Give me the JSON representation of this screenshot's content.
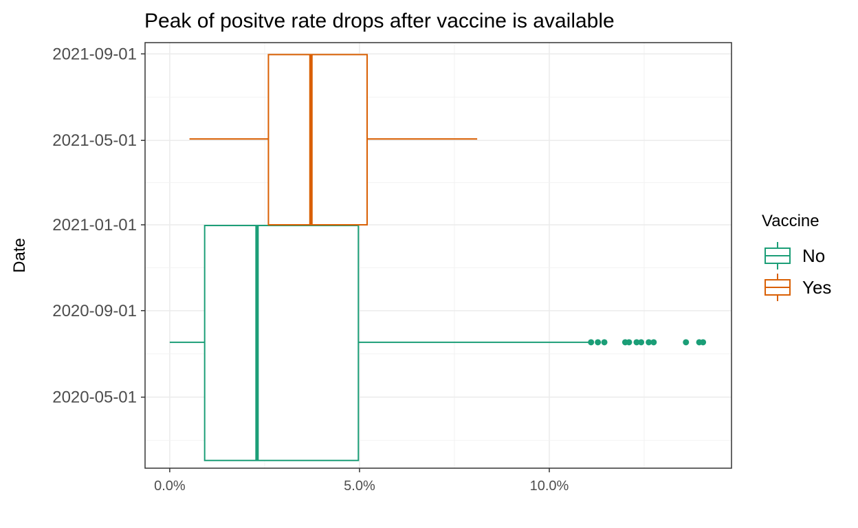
{
  "chart_data": {
    "type": "boxplot",
    "title": "Peak of positve rate drops after vaccine is available",
    "xlabel": "",
    "ylabel": "Date",
    "x_axis": {
      "format": "percent",
      "ticks": [
        0.0,
        5.0,
        10.0
      ],
      "tick_labels": [
        "0.0%",
        "5.0%",
        "10.0%"
      ],
      "range": [
        -0.65,
        14.8
      ]
    },
    "y_axis": {
      "type": "date",
      "ticks": [
        "2020-05-01",
        "2020-09-01",
        "2021-01-01",
        "2021-05-01",
        "2021-09-01"
      ],
      "range": [
        "2020-01-21",
        "2021-09-17"
      ]
    },
    "grid": true,
    "legend": {
      "title": "Vaccine",
      "position": "right",
      "entries": [
        "No",
        "Yes"
      ]
    },
    "colors": {
      "No": "#1b9e77",
      "Yes": "#d95f02"
    },
    "series": [
      {
        "name": "No",
        "y_min": "2020-02-01",
        "y_max": "2020-12-31",
        "y_center": "2020-07-18",
        "whisker_low": 0.0,
        "q1": 0.92,
        "median": 2.3,
        "q3": 4.97,
        "whisker_high": 11.07,
        "outliers": [
          11.1,
          11.28,
          11.45,
          12.0,
          12.1,
          12.3,
          12.42,
          12.62,
          12.75,
          13.6,
          13.95,
          14.05
        ]
      },
      {
        "name": "Yes",
        "y_min": "2021-01-01",
        "y_max": "2021-08-31",
        "y_center": "2021-05-03",
        "whisker_low": 0.52,
        "q1": 2.6,
        "median": 3.72,
        "q3": 5.2,
        "whisker_high": 8.1,
        "outliers": []
      }
    ]
  }
}
